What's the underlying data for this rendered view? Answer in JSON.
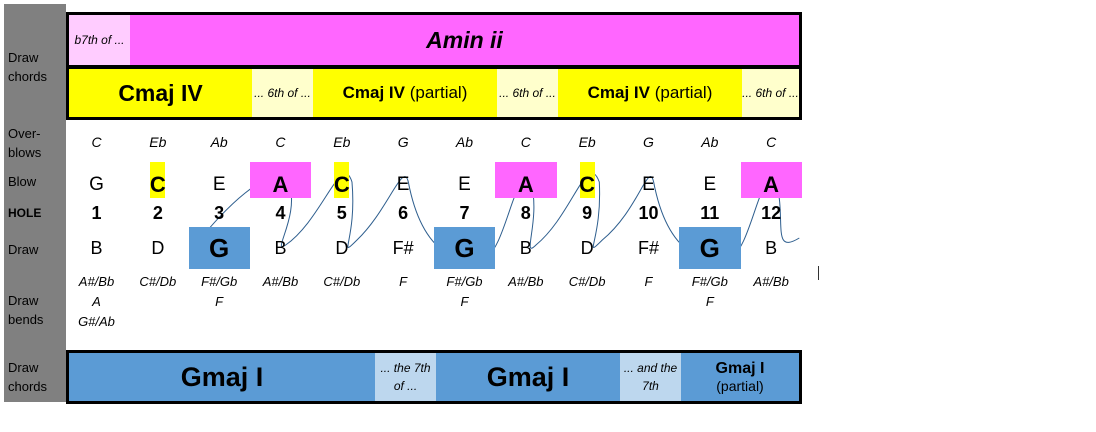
{
  "side_labels": {
    "draw_chords_top": "Draw chords",
    "overblows": "Over-blows",
    "blow": "Blow",
    "hole": "HOLE",
    "draw": "Draw",
    "draw_bends": "Draw bends",
    "draw_chords_bottom": "Draw chords"
  },
  "top_band": {
    "prefix_note": "b7th of ...",
    "chord": "Amin ii"
  },
  "mid_band": {
    "chord1": "Cmaj IV",
    "note1": "... 6th of ...",
    "chord2": "Cmaj IV",
    "partial2": "(partial)",
    "note2": "... 6th of ...",
    "chord3": "Cmaj IV",
    "partial3": "(partial)",
    "note3": "... 6th of ..."
  },
  "bottom_band": {
    "chord1": "Gmaj I",
    "note1": "... the 7th of ...",
    "chord2": "Gmaj I",
    "note2": "... and the 7th",
    "chord3": "Gmaj I",
    "partial3": "(partial)"
  },
  "overblows": [
    "C",
    "Eb",
    "Ab",
    "C",
    "Eb",
    "G",
    "Ab",
    "C",
    "Eb",
    "G",
    "Ab",
    "C"
  ],
  "blow": [
    "G",
    "C",
    "E",
    "A",
    "C",
    "E",
    "E",
    "A",
    "C",
    "E",
    "E",
    "A"
  ],
  "holes": [
    "1",
    "2",
    "3",
    "4",
    "5",
    "6",
    "7",
    "8",
    "9",
    "10",
    "11",
    "12"
  ],
  "draw": [
    "B",
    "D",
    "G",
    "B",
    "D",
    "F#",
    "G",
    "B",
    "D",
    "F#",
    "G",
    "B"
  ],
  "draw_bends": [
    [
      "A#/Bb",
      "A",
      "G#/Ab"
    ],
    [
      "C#/Db"
    ],
    [
      "F#/Gb",
      "F"
    ],
    [
      "A#/Bb"
    ],
    [
      "C#/Db"
    ],
    [
      "F"
    ],
    [
      "F#/Gb",
      "F"
    ],
    [
      "A#/Bb"
    ],
    [
      "C#/Db"
    ],
    [
      "F"
    ],
    [
      "F#/Gb",
      "F"
    ],
    [
      "A#/Bb"
    ]
  ],
  "colors": {
    "pink": "#ff66ff",
    "light_pink": "#ffccff",
    "yellow": "#ffff00",
    "cream": "#ffffcc",
    "blue": "#5b9bd5",
    "light_blue": "#bdd7ee",
    "curve": "#2e5e8e"
  }
}
